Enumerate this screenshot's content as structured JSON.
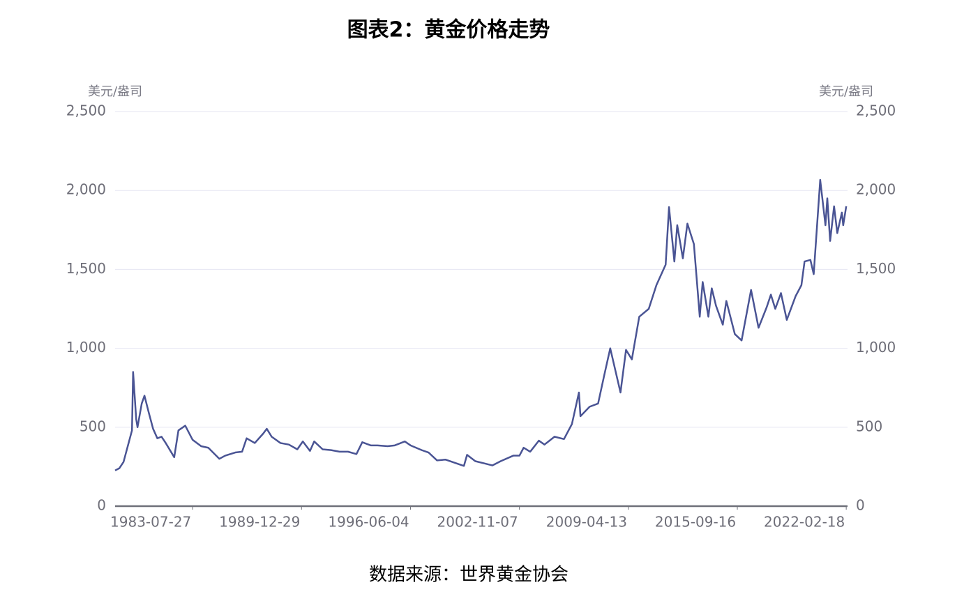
{
  "chart_data": {
    "type": "line",
    "title": "图表2：黄金价格走势",
    "source": "数据来源：世界黄金协会",
    "y_label": "美元/盎司",
    "y2_label": "美元/盎司",
    "xlim": [
      "1978-12-29",
      "2022-03-18"
    ],
    "xticks": [
      "1983-07-27",
      "1989-12-29",
      "1996-06-04",
      "2002-11-07",
      "2009-04-13",
      "2015-09-16",
      "2022-02-18"
    ],
    "ylim": [
      0,
      2500
    ],
    "yticks": [
      0,
      500,
      {
        "value": 1000,
        "label": "1,000"
      },
      {
        "value": 1500,
        "label": "1,500"
      },
      {
        "value": 2000,
        "label": "2,000"
      },
      {
        "value": 2500,
        "label": "2,500"
      }
    ],
    "y2lim": [
      0,
      2500
    ],
    "y2ticks": [
      0,
      500,
      {
        "value": 1000,
        "label": "1,000"
      },
      {
        "value": 1500,
        "label": "1,500"
      },
      {
        "value": 2000,
        "label": "2,000"
      },
      {
        "value": 2500,
        "label": "2,500"
      }
    ],
    "grid": true,
    "x": [
      "1978-12-29",
      "1979-03-30",
      "1979-06-29",
      "1979-09-28",
      "1979-12-28",
      "1980-01-21",
      "1980-03-28",
      "1980-04-25",
      "1980-07-25",
      "1980-09-22",
      "1980-12-26",
      "1981-03-27",
      "1981-06-26",
      "1981-09-25",
      "1981-12-24",
      "1982-06-25",
      "1982-09-24",
      "1983-02-18",
      "1983-07-27",
      "1984-01-27",
      "1984-06-29",
      "1985-02-22",
      "1985-06-28",
      "1986-01-31",
      "1986-06-27",
      "1986-10-03",
      "1987-03-27",
      "1987-09-25",
      "1987-12-11",
      "1988-03-25",
      "1988-09-30",
      "1989-03-31",
      "1989-09-29",
      "1990-01-26",
      "1990-06-29",
      "1990-09-28",
      "1991-03-29",
      "1991-09-27",
      "1992-03-27",
      "1992-09-25",
      "1993-03-26",
      "1993-07-30",
      "1994-01-28",
      "1994-06-24",
      "1995-01-27",
      "1995-06-30",
      "1996-02-02",
      "1996-06-04",
      "1997-01-31",
      "1997-06-27",
      "1997-12-26",
      "1998-06-26",
      "1999-07-30",
      "1999-10-05",
      "2000-03-31",
      "2000-09-29",
      "2001-04-02",
      "2001-09-28",
      "2002-06-28",
      "2002-11-07",
      "2003-02-05",
      "2003-06-27",
      "2003-12-31",
      "2004-04-30",
      "2004-12-02",
      "2005-06-24",
      "2005-12-12",
      "2006-05-12",
      "2006-06-14",
      "2006-12-29",
      "2007-06-29",
      "2007-11-09",
      "2008-03-17",
      "2008-10-24",
      "2009-02-20",
      "2009-06-26",
      "2009-12-02",
      "2010-06-25",
      "2010-12-07",
      "2011-06-24",
      "2011-09-05",
      "2011-12-29",
      "2012-02-29",
      "2012-06-29",
      "2012-10-05",
      "2013-02-22",
      "2013-06-28",
      "2013-08-30",
      "2013-12-31",
      "2014-03-14",
      "2014-06-13",
      "2014-11-07",
      "2015-01-22",
      "2015-07-24",
      "2015-12-17",
      "2016-07-08",
      "2016-12-16",
      "2017-06-09",
      "2017-09-08",
      "2017-12-12",
      "2018-04-13",
      "2018-08-17",
      "2019-02-22",
      "2019-06-28",
      "2019-09-04",
      "2020-01-08",
      "2020-03-19",
      "2020-08-06",
      "2020-11-27",
      "2021-01-06",
      "2021-03-08",
      "2021-06-01",
      "2021-08-09",
      "2021-11-16",
      "2021-12-15",
      "2022-02-18"
    ],
    "series": [
      {
        "name": "黄金价格",
        "color": "#4a5494",
        "values": [
          226,
          240,
          280,
          380,
          480,
          850,
          550,
          500,
          650,
          700,
          590,
          490,
          430,
          440,
          400,
          310,
          480,
          510,
          420,
          380,
          370,
          300,
          320,
          340,
          345,
          430,
          400,
          460,
          490,
          440,
          400,
          390,
          360,
          410,
          350,
          410,
          360,
          355,
          345,
          345,
          330,
          405,
          385,
          385,
          380,
          385,
          410,
          385,
          355,
          340,
          290,
          295,
          255,
          325,
          285,
          272,
          258,
          285,
          320,
          320,
          370,
          345,
          415,
          390,
          440,
          425,
          520,
          720,
          570,
          630,
          650,
          830,
          1000,
          720,
          990,
          930,
          1200,
          1250,
          1400,
          1530,
          1895,
          1550,
          1780,
          1570,
          1790,
          1660,
          1200,
          1420,
          1200,
          1380,
          1270,
          1150,
          1300,
          1090,
          1050,
          1370,
          1130,
          1260,
          1340,
          1250,
          1350,
          1180,
          1330,
          1400,
          1550,
          1560,
          1470,
          2067,
          1780,
          1950,
          1680,
          1900,
          1730,
          1860,
          1780,
          1900
        ]
      }
    ]
  }
}
